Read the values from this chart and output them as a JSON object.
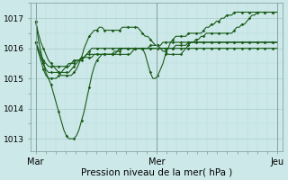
{
  "title": "Pression niveau de la mer( hPa )",
  "background_color": "#cce8e8",
  "grid_color_major": "#aacccc",
  "grid_color_minor": "#bbdddd",
  "line_color": "#1a5c1a",
  "marker_color": "#1a5c1a",
  "ylabel_ticks": [
    1013,
    1014,
    1015,
    1016,
    1017
  ],
  "xtick_labels": [
    "Mar",
    "Mer",
    "Jeu"
  ],
  "xtick_positions": [
    0,
    48,
    96
  ],
  "xlim": [
    -2,
    98
  ],
  "ylim": [
    1012.6,
    1017.5
  ],
  "series": [
    [
      1016.9,
      1016.3,
      1015.9,
      1015.5,
      1015.2,
      1015.0,
      1014.8,
      1014.5,
      1014.2,
      1013.9,
      1013.6,
      1013.3,
      1013.1,
      1013.0,
      1013.0,
      1013.0,
      1013.1,
      1013.3,
      1013.6,
      1013.9,
      1014.3,
      1014.7,
      1015.1,
      1015.4,
      1015.6,
      1015.7,
      1015.8,
      1015.8,
      1015.8,
      1015.8,
      1015.8,
      1015.8,
      1015.8,
      1015.8,
      1015.8,
      1015.8,
      1015.8,
      1015.8,
      1015.9,
      1016.0,
      1016.0,
      1016.0,
      1016.0,
      1015.8,
      1015.5,
      1015.2,
      1015.0,
      1015.0,
      1015.1,
      1015.3,
      1015.5,
      1015.8,
      1016.0,
      1016.2,
      1016.3,
      1016.4,
      1016.4,
      1016.4,
      1016.4,
      1016.4,
      1016.5,
      1016.5,
      1016.5,
      1016.5,
      1016.5,
      1016.5,
      1016.6,
      1016.7,
      1016.7,
      1016.8,
      1016.8,
      1016.9,
      1016.9,
      1017.0,
      1017.0,
      1017.1,
      1017.1,
      1017.1,
      1017.2,
      1017.2,
      1017.2,
      1017.2,
      1017.2,
      1017.2,
      1017.2,
      1017.2,
      1017.2,
      1017.2,
      1017.2,
      1017.2,
      1017.2,
      1017.2,
      1017.2,
      1017.2,
      1017.2,
      1017.2
    ],
    [
      1016.2,
      1016.0,
      1015.8,
      1015.6,
      1015.5,
      1015.4,
      1015.4,
      1015.4,
      1015.4,
      1015.4,
      1015.4,
      1015.4,
      1015.4,
      1015.4,
      1015.5,
      1015.5,
      1015.6,
      1015.6,
      1015.7,
      1015.7,
      1015.8,
      1015.8,
      1015.8,
      1015.8,
      1015.8,
      1015.8,
      1015.8,
      1015.8,
      1015.8,
      1015.8,
      1015.8,
      1015.9,
      1015.9,
      1016.0,
      1016.0,
      1016.0,
      1016.0,
      1016.0,
      1016.0,
      1016.0,
      1016.0,
      1016.0,
      1016.0,
      1016.0,
      1016.0,
      1016.0,
      1016.0,
      1016.0,
      1016.0,
      1016.0,
      1016.0,
      1016.0,
      1016.0,
      1016.0,
      1016.0,
      1016.1,
      1016.1,
      1016.1,
      1016.1,
      1016.1,
      1016.2,
      1016.2,
      1016.2,
      1016.2,
      1016.2,
      1016.2,
      1016.2,
      1016.2,
      1016.2,
      1016.2,
      1016.2,
      1016.2,
      1016.2,
      1016.2,
      1016.2,
      1016.2,
      1016.2,
      1016.2,
      1016.2,
      1016.2,
      1016.2,
      1016.2,
      1016.2,
      1016.2,
      1016.2,
      1016.2,
      1016.2,
      1016.2,
      1016.2,
      1016.2,
      1016.2,
      1016.2,
      1016.2,
      1016.2,
      1016.2,
      1016.2
    ],
    [
      1016.2,
      1015.9,
      1015.7,
      1015.5,
      1015.3,
      1015.2,
      1015.2,
      1015.2,
      1015.2,
      1015.2,
      1015.2,
      1015.2,
      1015.2,
      1015.2,
      1015.3,
      1015.4,
      1015.5,
      1015.6,
      1015.6,
      1015.7,
      1015.7,
      1015.7,
      1015.7,
      1015.8,
      1015.8,
      1015.8,
      1015.8,
      1015.8,
      1015.8,
      1015.8,
      1015.8,
      1015.8,
      1015.9,
      1015.9,
      1016.0,
      1016.0,
      1016.0,
      1016.0,
      1016.0,
      1016.0,
      1016.0,
      1016.0,
      1016.0,
      1016.0,
      1016.0,
      1016.1,
      1016.1,
      1016.1,
      1016.1,
      1016.1,
      1016.2,
      1016.2,
      1016.2,
      1016.2,
      1016.2,
      1016.2,
      1016.2,
      1016.2,
      1016.2,
      1016.2,
      1016.2,
      1016.2,
      1016.2,
      1016.2,
      1016.2,
      1016.2,
      1016.2,
      1016.2,
      1016.2,
      1016.2,
      1016.2,
      1016.2,
      1016.2,
      1016.2,
      1016.2,
      1016.2,
      1016.2,
      1016.2,
      1016.2,
      1016.2,
      1016.2,
      1016.2,
      1016.2,
      1016.2,
      1016.2,
      1016.2,
      1016.2,
      1016.2,
      1016.2,
      1016.2,
      1016.2,
      1016.2,
      1016.2,
      1016.2,
      1016.2,
      1016.2
    ],
    [
      1016.2,
      1015.9,
      1015.6,
      1015.3,
      1015.1,
      1015.0,
      1015.0,
      1015.0,
      1015.0,
      1015.1,
      1015.2,
      1015.3,
      1015.4,
      1015.5,
      1015.5,
      1015.6,
      1015.6,
      1015.6,
      1015.7,
      1015.7,
      1015.8,
      1015.9,
      1016.0,
      1016.0,
      1016.0,
      1016.0,
      1016.0,
      1016.0,
      1016.0,
      1016.0,
      1016.0,
      1016.0,
      1016.0,
      1016.0,
      1016.0,
      1016.0,
      1016.0,
      1016.0,
      1016.0,
      1016.0,
      1016.0,
      1016.0,
      1016.0,
      1016.0,
      1016.0,
      1016.0,
      1016.0,
      1016.0,
      1016.0,
      1016.0,
      1016.0,
      1016.0,
      1016.0,
      1016.0,
      1016.0,
      1016.0,
      1016.0,
      1016.0,
      1016.0,
      1016.0,
      1016.0,
      1016.0,
      1016.0,
      1016.0,
      1016.0,
      1016.0,
      1016.0,
      1016.0,
      1016.0,
      1016.0,
      1016.0,
      1016.0,
      1016.0,
      1016.0,
      1016.0,
      1016.0,
      1016.0,
      1016.0,
      1016.0,
      1016.0,
      1016.0,
      1016.0,
      1016.0,
      1016.0,
      1016.0,
      1016.0,
      1016.0,
      1016.0,
      1016.0,
      1016.0,
      1016.0,
      1016.0,
      1016.0,
      1016.0,
      1016.0,
      1016.0
    ],
    [
      1016.9,
      1016.5,
      1016.2,
      1016.0,
      1015.8,
      1015.6,
      1015.5,
      1015.4,
      1015.3,
      1015.2,
      1015.1,
      1015.1,
      1015.1,
      1015.1,
      1015.1,
      1015.2,
      1015.3,
      1015.5,
      1015.7,
      1016.0,
      1016.2,
      1016.4,
      1016.5,
      1016.6,
      1016.6,
      1016.7,
      1016.7,
      1016.6,
      1016.6,
      1016.6,
      1016.6,
      1016.6,
      1016.6,
      1016.6,
      1016.7,
      1016.7,
      1016.7,
      1016.7,
      1016.7,
      1016.7,
      1016.7,
      1016.6,
      1016.5,
      1016.4,
      1016.4,
      1016.3,
      1016.2,
      1016.1,
      1016.1,
      1016.0,
      1015.9,
      1015.9,
      1015.8,
      1015.8,
      1015.8,
      1015.8,
      1015.8,
      1015.8,
      1015.9,
      1016.0,
      1016.1,
      1016.2,
      1016.2,
      1016.3,
      1016.3,
      1016.4,
      1016.4,
      1016.5,
      1016.5,
      1016.5,
      1016.5,
      1016.5,
      1016.5,
      1016.5,
      1016.5,
      1016.5,
      1016.5,
      1016.5,
      1016.6,
      1016.7,
      1016.7,
      1016.8,
      1016.8,
      1016.9,
      1017.0,
      1017.1,
      1017.1,
      1017.2,
      1017.2,
      1017.2,
      1017.2,
      1017.2,
      1017.2,
      1017.2,
      1017.2,
      1017.2
    ]
  ]
}
